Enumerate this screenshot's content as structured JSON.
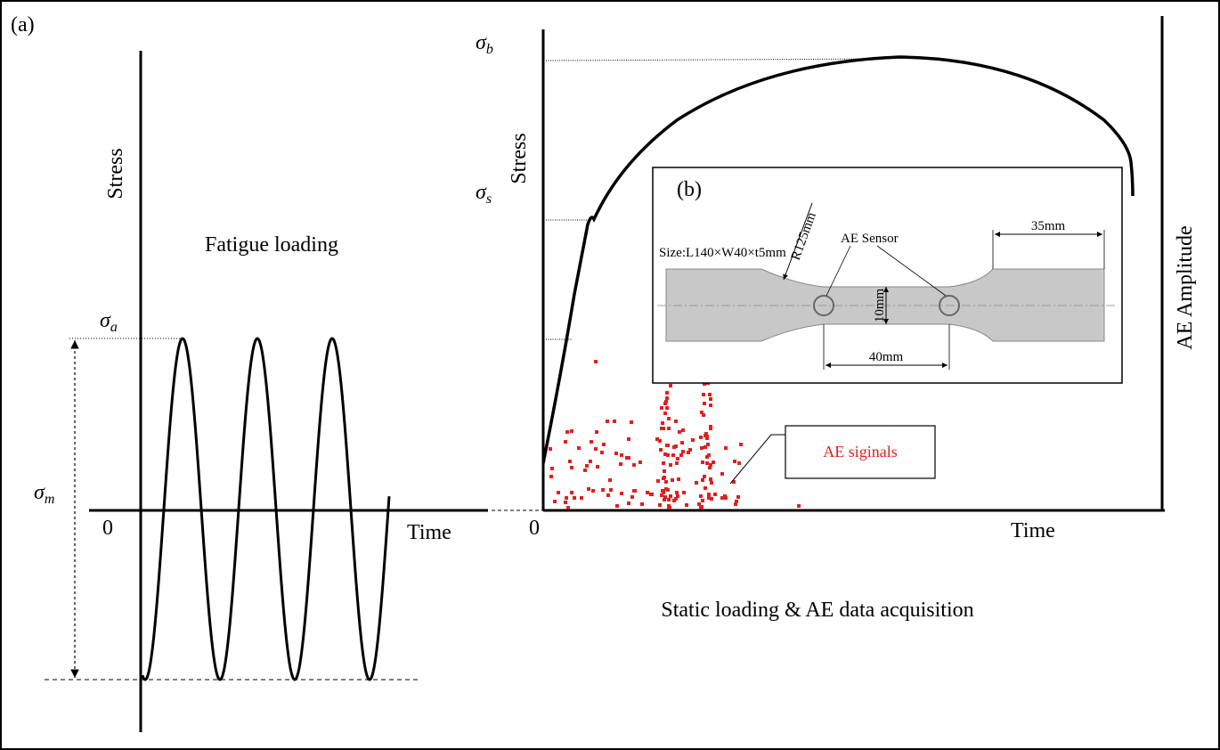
{
  "panel_a": {
    "label": "(a)",
    "y_axis_label": "Stress",
    "title": "Fatigue loading",
    "sigma_a": {
      "symbol": "σ",
      "sub": "a"
    },
    "sigma_m": {
      "symbol": "σ",
      "sub": "m"
    },
    "origin": "0",
    "x_axis_label": "Time"
  },
  "panel_static": {
    "y_axis_label": "Stress",
    "sigma_b": {
      "symbol": "σ",
      "sub": "b"
    },
    "sigma_s": {
      "symbol": "σ",
      "sub": "s"
    },
    "origin": "0",
    "x_axis_label": "Time",
    "y2_axis_label": "AE Amplitude",
    "callout": "AE siginals",
    "caption": "Static loading & AE data acquisition"
  },
  "panel_b": {
    "label": "(b)",
    "size": "Size:L140×W40×t5mm",
    "radius": "R125mm",
    "sensor": "AE Sensor",
    "grip_length": "35mm",
    "width": "10mm",
    "gauge": "40mm"
  }
}
